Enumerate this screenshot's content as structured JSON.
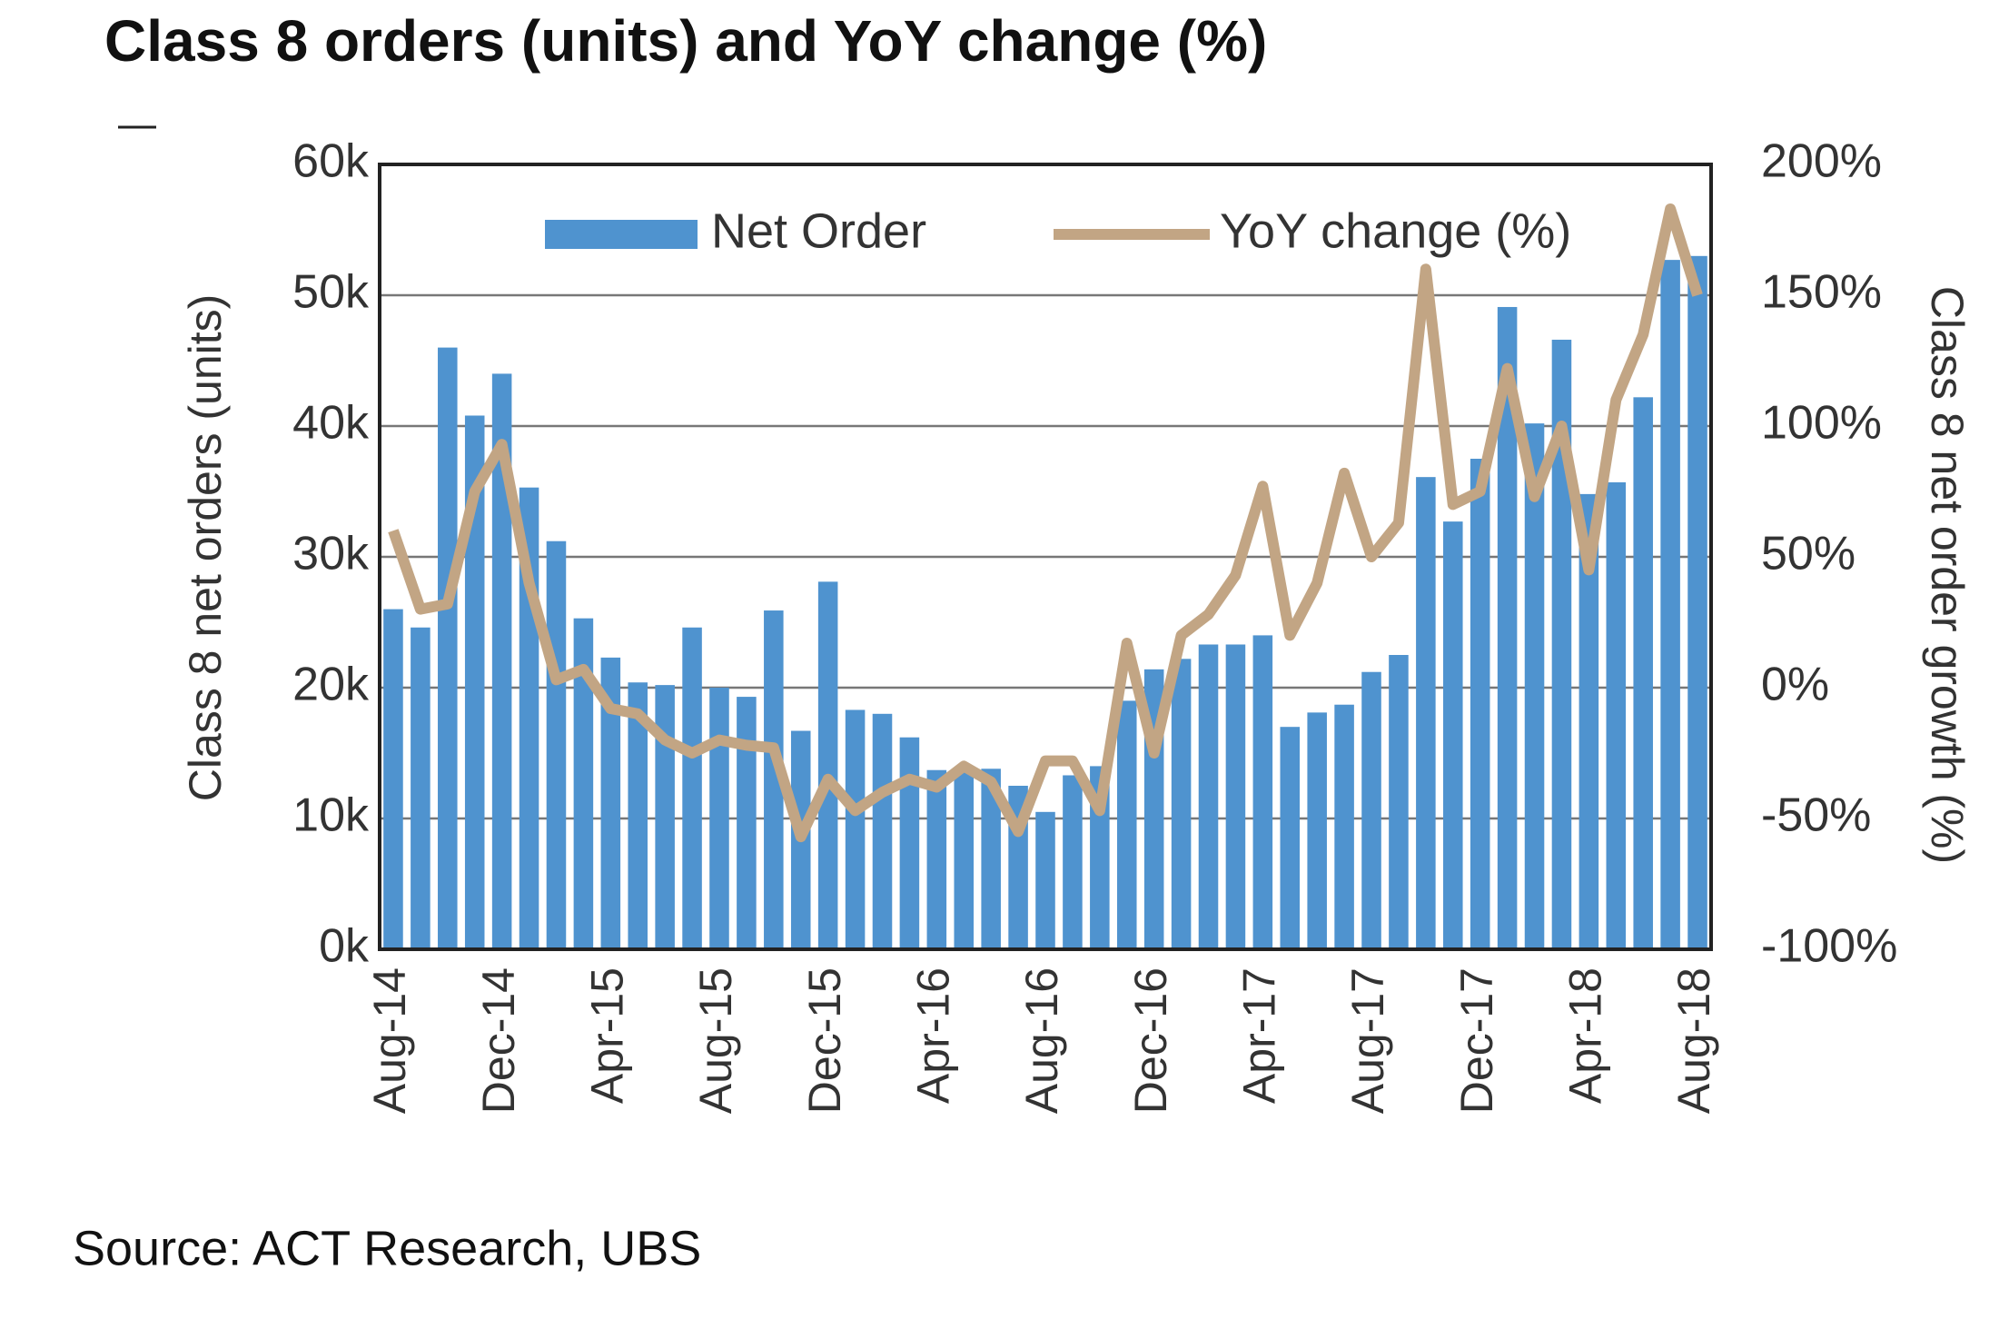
{
  "chart_data": {
    "type": "bar",
    "title": "Class 8 orders (units) and YoY change (%)",
    "ylabel": "Class 8 net orders (units)",
    "y2label": "Class 8 net order growth (%)",
    "source": "Source: ACT Research, UBS",
    "categories": [
      "Aug-14",
      null,
      null,
      null,
      "Dec-14",
      null,
      null,
      null,
      "Apr-15",
      null,
      null,
      null,
      "Aug-15",
      null,
      null,
      null,
      "Dec-15",
      null,
      null,
      null,
      "Apr-16",
      null,
      null,
      null,
      "Aug-16",
      null,
      null,
      null,
      "Dec-16",
      null,
      null,
      null,
      "Apr-17",
      null,
      null,
      null,
      "Aug-17",
      null,
      null,
      null,
      "Dec-17",
      null,
      null,
      null,
      "Apr-18",
      null,
      null,
      null,
      "Aug-18"
    ],
    "series": [
      {
        "name": "Net Order",
        "color": "#4f93cf",
        "type": "bar",
        "values": [
          26,
          24.6,
          46,
          40.8,
          44,
          35.3,
          31.2,
          25.3,
          22.3,
          20.4,
          20.2,
          24.6,
          20,
          19.3,
          25.9,
          16.7,
          28.1,
          18.3,
          18,
          16.2,
          13.7,
          13.6,
          13.8,
          12.5,
          10.5,
          13.3,
          14,
          19,
          21.4,
          22.2,
          23.3,
          23.3,
          24,
          17,
          18.1,
          18.7,
          21.2,
          22.5,
          36.1,
          32.7,
          37.5,
          49.1,
          40.2,
          46.6,
          34.8,
          35.7,
          42.2,
          52.7,
          53
        ]
      },
      {
        "name": "YoY change (%)",
        "color": "#c2a584",
        "type": "line",
        "axis": "y2",
        "values": [
          60,
          30,
          32,
          75,
          93,
          40,
          3,
          7,
          -8,
          -10,
          -20,
          -25,
          -20,
          -22,
          -23,
          -57,
          -35,
          -47,
          -40,
          -35,
          -38,
          -30,
          -36,
          -55,
          -28,
          -28,
          -47,
          17,
          -25,
          20,
          28,
          43,
          77,
          20,
          40,
          82,
          50,
          63,
          160,
          70,
          75,
          122,
          73,
          100,
          45,
          110,
          135,
          183,
          150
        ]
      }
    ],
    "ylim": [
      0,
      60
    ],
    "yticks": [
      {
        "value": 0,
        "label": "0k"
      },
      {
        "value": 10,
        "label": "10k"
      },
      {
        "value": 20,
        "label": "20k"
      },
      {
        "value": 30,
        "label": "30k"
      },
      {
        "value": 40,
        "label": "40k"
      },
      {
        "value": 50,
        "label": "50k"
      },
      {
        "value": 60,
        "label": "60k"
      }
    ],
    "y2lim": [
      -100,
      200
    ],
    "y2ticks": [
      {
        "value": -100,
        "label": "-100%"
      },
      {
        "value": -50,
        "label": "-50%"
      },
      {
        "value": 0,
        "label": "0%"
      },
      {
        "value": 50,
        "label": "50%"
      },
      {
        "value": 100,
        "label": "100%"
      },
      {
        "value": 150,
        "label": "150%"
      },
      {
        "value": 200,
        "label": "200%"
      }
    ],
    "grid": true,
    "legend": "top"
  }
}
